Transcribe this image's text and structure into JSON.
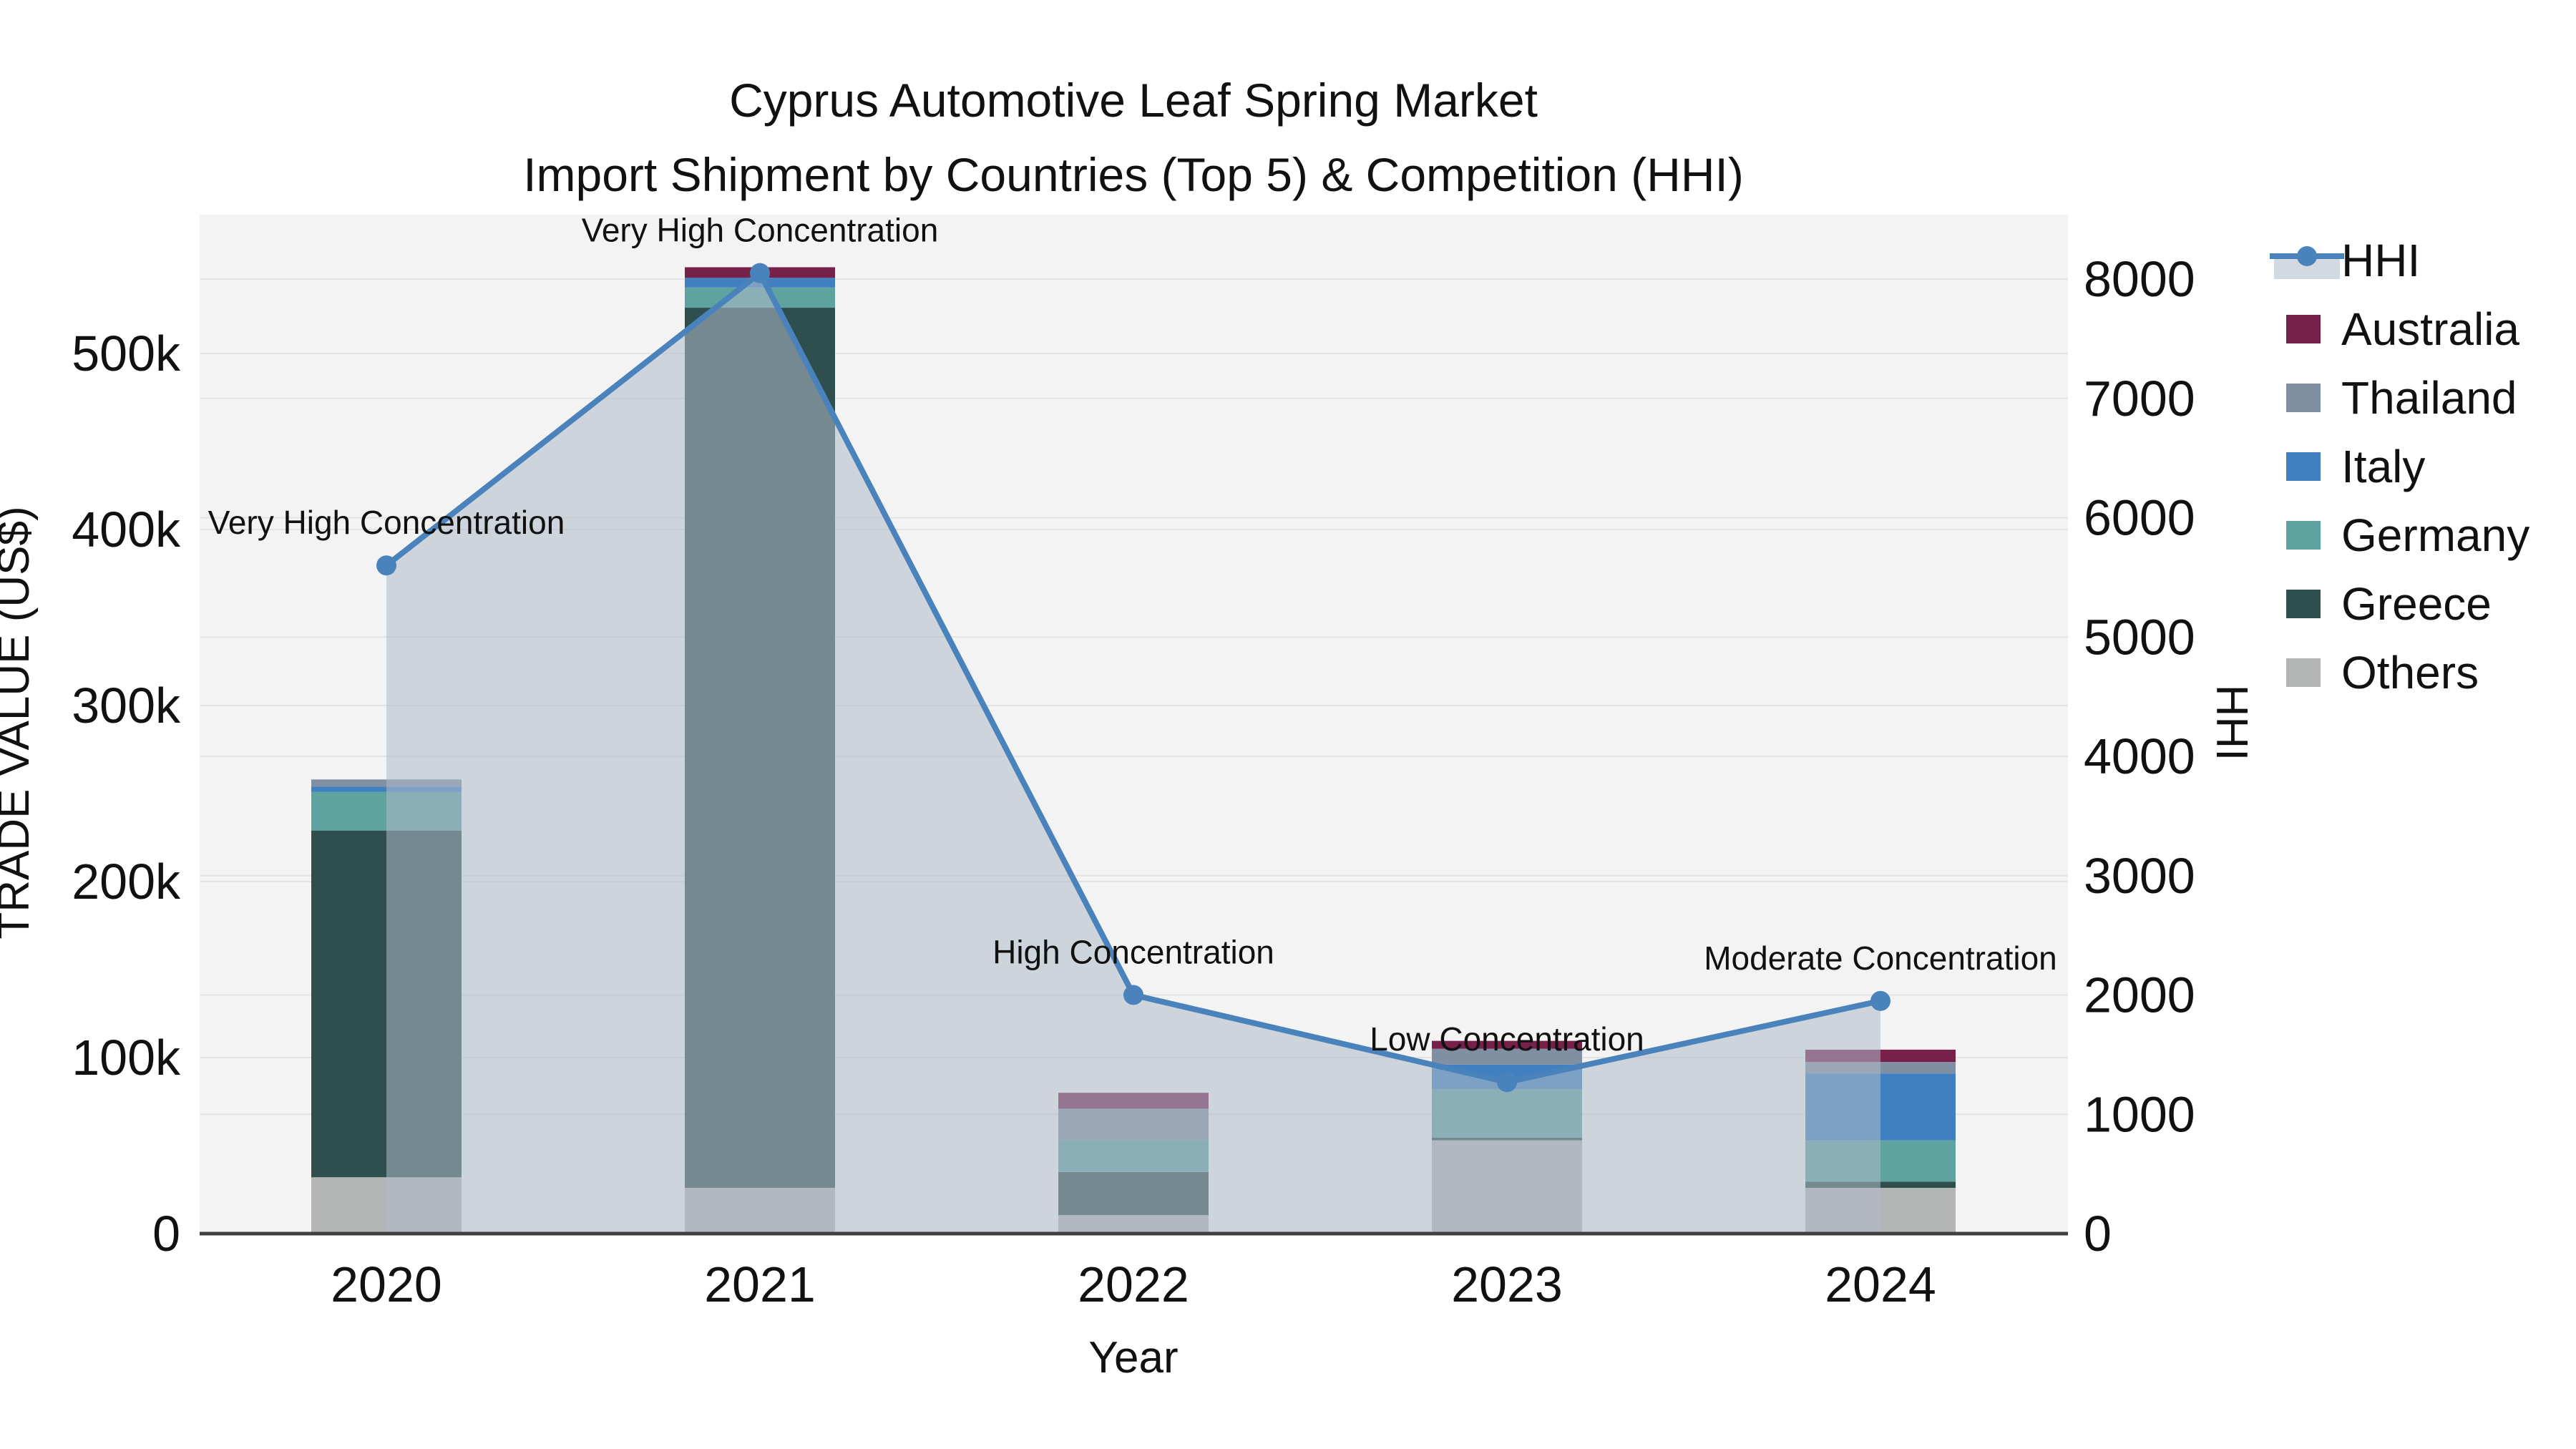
{
  "title": {
    "line1": "Cyprus Automotive Leaf Spring Market",
    "line2": "Import Shipment by Countries (Top 5) & Competition (HHI)"
  },
  "axes": {
    "left_title": "TRADE VALUE (US$)",
    "right_title": "HHI",
    "x_title": "Year",
    "left_tick_labels": [
      "0",
      "100k",
      "200k",
      "300k",
      "400k",
      "500k"
    ],
    "right_tick_labels": [
      "0",
      "1000",
      "2000",
      "3000",
      "4000",
      "5000",
      "6000",
      "7000",
      "8000"
    ]
  },
  "legend": {
    "items": [
      {
        "label": "HHI",
        "type": "line",
        "color": "#4a83bc"
      },
      {
        "label": "Australia",
        "type": "swatch",
        "color": "#76204a"
      },
      {
        "label": "Thailand",
        "type": "swatch",
        "color": "#8090a2"
      },
      {
        "label": "Italy",
        "type": "swatch",
        "color": "#4080c0"
      },
      {
        "label": "Germany",
        "type": "swatch",
        "color": "#5fa3a1"
      },
      {
        "label": "Greece",
        "type": "swatch",
        "color": "#2f4f4e"
      },
      {
        "label": "Others",
        "type": "swatch",
        "color": "#b4b6b5"
      }
    ]
  },
  "colors": {
    "hhi_line": "#4a83bc",
    "hhi_area_fill": "rgba(175,185,200,0.55)",
    "plot_background": "#f3f3f3",
    "gridline": "#e4e4e4",
    "axis_line": "#3f3f3f",
    "australia": "#76204a",
    "thailand": "#8090a2",
    "italy": "#4080c0",
    "germany": "#5fa3a1",
    "greece": "#2f4f4e",
    "others": "#b4b6b5"
  },
  "chart_data": {
    "type": "bar",
    "subtype": "stacked-bars-with-line",
    "title": "Cyprus Automotive Leaf Spring Market Import Shipment by Countries (Top 5) & Competition (HHI)",
    "xlabel": "Year",
    "ylabel_left": "TRADE VALUE (US$)",
    "ylabel_right": "HHI",
    "categories": [
      "2020",
      "2021",
      "2022",
      "2023",
      "2024"
    ],
    "series": [
      {
        "name": "Others",
        "axis": "left",
        "values": [
          32000,
          26000,
          10500,
          53000,
          26000
        ]
      },
      {
        "name": "Greece",
        "axis": "left",
        "values": [
          197000,
          500000,
          24500,
          1500,
          3500
        ]
      },
      {
        "name": "Germany",
        "axis": "left",
        "values": [
          22000,
          11500,
          18500,
          27500,
          23500
        ]
      },
      {
        "name": "Italy",
        "axis": "left",
        "values": [
          3000,
          5500,
          0,
          14000,
          38000
        ]
      },
      {
        "name": "Thailand",
        "axis": "left",
        "values": [
          4000,
          0,
          17500,
          9000,
          6500
        ]
      },
      {
        "name": "Australia",
        "axis": "left",
        "values": [
          0,
          6000,
          9000,
          4500,
          7000
        ]
      }
    ],
    "line_series": {
      "name": "HHI",
      "axis": "right",
      "values": [
        5600,
        8050,
        2000,
        1270,
        1950
      ],
      "area_fill": true
    },
    "annotations": [
      {
        "category": "2020",
        "text": "Very High Concentration"
      },
      {
        "category": "2021",
        "text": "Very High Concentration"
      },
      {
        "category": "2022",
        "text": "High Concentration"
      },
      {
        "category": "2023",
        "text": "Low Concentration"
      },
      {
        "category": "2024",
        "text": "Moderate Concentration"
      }
    ],
    "left_axis": {
      "min": 0,
      "max": 580000,
      "tick_step": 100000,
      "grid": true
    },
    "right_axis": {
      "min": 0,
      "max": 8540,
      "tick_step": 1000,
      "grid": true
    },
    "legend_position": "right"
  }
}
